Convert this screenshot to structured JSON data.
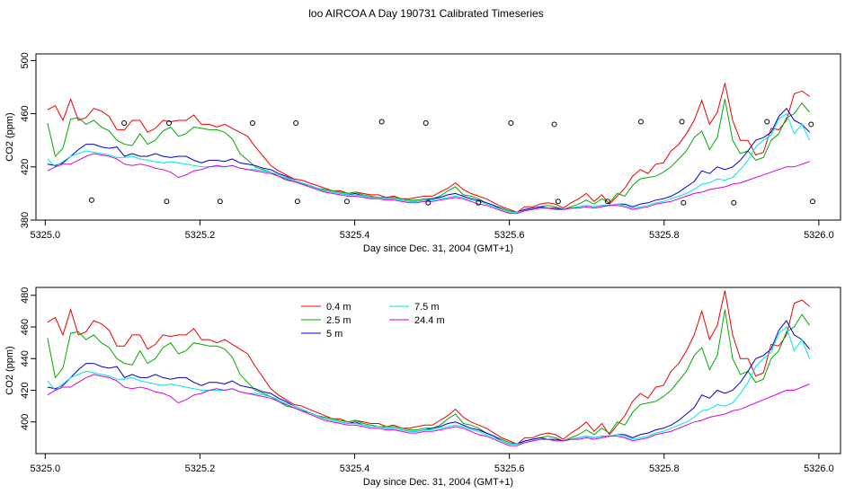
{
  "title": "loo AIRCOA A  Day 190731  Calibrated Timeseries",
  "colors": {
    "0.4 m": "#ee0000",
    "2.5 m": "#00aa00",
    "5 m": "#0000cc",
    "7.5 m": "#00e5e5",
    "24.4 m": "#dd00dd",
    "axes": "#000000",
    "markers": "#000000"
  },
  "chart_data": [
    {
      "type": "line",
      "xlabel": "Day since Dec. 31, 2004 (GMT+1)",
      "ylabel": "CO2 (ppm)",
      "xlim": [
        4.988,
        6.028
      ],
      "ylim": [
        380,
        505
      ],
      "x_ticks": [
        5.0,
        5.2,
        5.4,
        5.6,
        5.8,
        6.0
      ],
      "x_tick_labels": [
        "5325.0",
        "5325.2",
        "5325.4",
        "5325.6",
        "5325.8",
        "5326.0"
      ],
      "y_ticks": [
        380,
        420,
        460,
        500
      ],
      "y_tick_labels": [
        "380",
        "420",
        "460",
        "500"
      ],
      "grid": false,
      "legend": "none",
      "series": [
        {
          "key": "0.4 m",
          "values": [
            463,
            466,
            455,
            471,
            455,
            457,
            464,
            462,
            458,
            448,
            448,
            455,
            455,
            446,
            449,
            455,
            454,
            455,
            455,
            459,
            452,
            452,
            450,
            452,
            449,
            446,
            443,
            435,
            428,
            421,
            417,
            414,
            411,
            410,
            408,
            406,
            404,
            402,
            402,
            400,
            401,
            400,
            399,
            399,
            397,
            398,
            396,
            396,
            397,
            398,
            398,
            401,
            404,
            408,
            403,
            400,
            398,
            396,
            393,
            390,
            388,
            386,
            390,
            390,
            392,
            393,
            392,
            389,
            393,
            396,
            400,
            394,
            399,
            392,
            398,
            404,
            413,
            418,
            415,
            422,
            423,
            432,
            437,
            445,
            455,
            470,
            452,
            461,
            483,
            455,
            440,
            440,
            429,
            431,
            449,
            448,
            455,
            475,
            477,
            473
          ]
        },
        {
          "key": "2.5 m",
          "values": [
            453,
            428,
            434,
            456,
            457,
            452,
            455,
            450,
            447,
            440,
            437,
            436,
            445,
            437,
            440,
            447,
            450,
            443,
            445,
            450,
            449,
            448,
            448,
            446,
            441,
            430,
            425,
            420,
            418,
            416,
            413,
            410,
            409,
            407,
            406,
            404,
            403,
            402,
            401,
            400,
            401,
            399,
            398,
            397,
            397,
            397,
            396,
            395,
            395,
            396,
            396,
            398,
            402,
            405,
            399,
            398,
            396,
            393,
            391,
            389,
            387,
            386,
            388,
            389,
            390,
            391,
            390,
            388,
            390,
            392,
            395,
            392,
            396,
            393,
            400,
            398,
            406,
            411,
            412,
            413,
            416,
            420,
            426,
            432,
            442,
            447,
            433,
            442,
            471,
            440,
            430,
            432,
            425,
            427,
            440,
            445,
            457,
            460,
            468,
            461
          ]
        },
        {
          "key": "5 m",
          "values": [
            422,
            421,
            423,
            428,
            433,
            437,
            437,
            435,
            434,
            435,
            428,
            430,
            428,
            428,
            430,
            428,
            427,
            428,
            428,
            425,
            423,
            425,
            425,
            424,
            426,
            423,
            422,
            421,
            419,
            418,
            415,
            413,
            410,
            408,
            406,
            404,
            402,
            401,
            400,
            399,
            400,
            398,
            397,
            397,
            396,
            396,
            395,
            394,
            394,
            395,
            396,
            397,
            399,
            400,
            398,
            396,
            395,
            393,
            391,
            388,
            386,
            386,
            388,
            389,
            390,
            389,
            389,
            388,
            389,
            390,
            391,
            390,
            391,
            391,
            392,
            392,
            390,
            392,
            393,
            395,
            396,
            398,
            401,
            405,
            409,
            417,
            415,
            420,
            418,
            420,
            425,
            432,
            440,
            442,
            446,
            458,
            464,
            455,
            452,
            446
          ]
        },
        {
          "key": "7.5 m",
          "values": [
            426,
            420,
            424,
            428,
            430,
            432,
            431,
            430,
            429,
            427,
            427,
            428,
            426,
            425,
            424,
            423,
            424,
            423,
            422,
            421,
            420,
            420,
            420,
            420,
            421,
            419,
            418,
            418,
            417,
            416,
            414,
            412,
            410,
            408,
            406,
            404,
            402,
            401,
            400,
            399,
            399,
            398,
            397,
            397,
            396,
            396,
            395,
            394,
            394,
            395,
            395,
            396,
            397,
            398,
            397,
            395,
            394,
            392,
            390,
            388,
            386,
            386,
            387,
            388,
            389,
            389,
            388,
            388,
            389,
            390,
            391,
            390,
            391,
            391,
            392,
            391,
            389,
            390,
            391,
            393,
            394,
            396,
            398,
            400,
            403,
            407,
            408,
            411,
            410,
            412,
            418,
            425,
            435,
            440,
            444,
            456,
            460,
            445,
            452,
            440
          ]
        },
        {
          "key": "24.4 m",
          "values": [
            417,
            420,
            422,
            422,
            425,
            428,
            430,
            429,
            428,
            426,
            422,
            421,
            422,
            421,
            419,
            418,
            416,
            412,
            414,
            417,
            418,
            420,
            421,
            420,
            421,
            419,
            418,
            417,
            416,
            415,
            413,
            411,
            409,
            407,
            405,
            403,
            401,
            400,
            399,
            398,
            398,
            397,
            396,
            396,
            395,
            395,
            394,
            393,
            393,
            394,
            394,
            395,
            396,
            397,
            396,
            394,
            392,
            391,
            389,
            387,
            385,
            385,
            387,
            388,
            389,
            389,
            388,
            388,
            389,
            389,
            390,
            389,
            390,
            391,
            391,
            390,
            388,
            389,
            390,
            392,
            393,
            394,
            396,
            398,
            400,
            401,
            403,
            404,
            405,
            407,
            408,
            410,
            412,
            414,
            416,
            418,
            420,
            420,
            422,
            424
          ]
        }
      ],
      "x_start": 5.003,
      "x_step": 0.00995,
      "markers": [
        {
          "x": 5.06,
          "y": 395
        },
        {
          "x": 5.102,
          "y": 453
        },
        {
          "x": 5.157,
          "y": 394
        },
        {
          "x": 5.16,
          "y": 453
        },
        {
          "x": 5.226,
          "y": 394
        },
        {
          "x": 5.268,
          "y": 453
        },
        {
          "x": 5.324,
          "y": 453
        },
        {
          "x": 5.326,
          "y": 394
        },
        {
          "x": 5.39,
          "y": 394
        },
        {
          "x": 5.435,
          "y": 454
        },
        {
          "x": 5.492,
          "y": 453
        },
        {
          "x": 5.495,
          "y": 393
        },
        {
          "x": 5.56,
          "y": 393
        },
        {
          "x": 5.602,
          "y": 453
        },
        {
          "x": 5.658,
          "y": 452
        },
        {
          "x": 5.663,
          "y": 394
        },
        {
          "x": 5.727,
          "y": 394
        },
        {
          "x": 5.77,
          "y": 454
        },
        {
          "x": 5.823,
          "y": 454
        },
        {
          "x": 5.825,
          "y": 393
        },
        {
          "x": 5.89,
          "y": 393
        },
        {
          "x": 5.933,
          "y": 454
        },
        {
          "x": 5.99,
          "y": 452
        },
        {
          "x": 5.992,
          "y": 394
        }
      ]
    },
    {
      "type": "line",
      "xlabel": "Day since Dec. 31, 2004 (GMT+1)",
      "ylabel": "CO2 (ppm)",
      "xlim": [
        4.988,
        6.028
      ],
      "ylim": [
        380,
        485
      ],
      "x_ticks": [
        5.0,
        5.2,
        5.4,
        5.6,
        5.8,
        6.0
      ],
      "x_tick_labels": [
        "5325.0",
        "5325.2",
        "5325.4",
        "5325.6",
        "5325.8",
        "5326.0"
      ],
      "y_ticks": [
        400,
        420,
        440,
        460,
        480
      ],
      "y_tick_labels": [
        "400",
        "420",
        "440",
        "460",
        "480"
      ],
      "grid": false,
      "legend": "top-center",
      "legend_entries": [
        {
          "key": "0.4 m",
          "label": "0.4 m"
        },
        {
          "key": "2.5 m",
          "label": "2.5 m"
        },
        {
          "key": "5 m",
          "label": "5 m"
        },
        {
          "key": "7.5 m",
          "label": "7.5 m"
        },
        {
          "key": "24.4 m",
          "label": "24.4 m"
        }
      ],
      "same_series_as_panel": 0
    }
  ]
}
